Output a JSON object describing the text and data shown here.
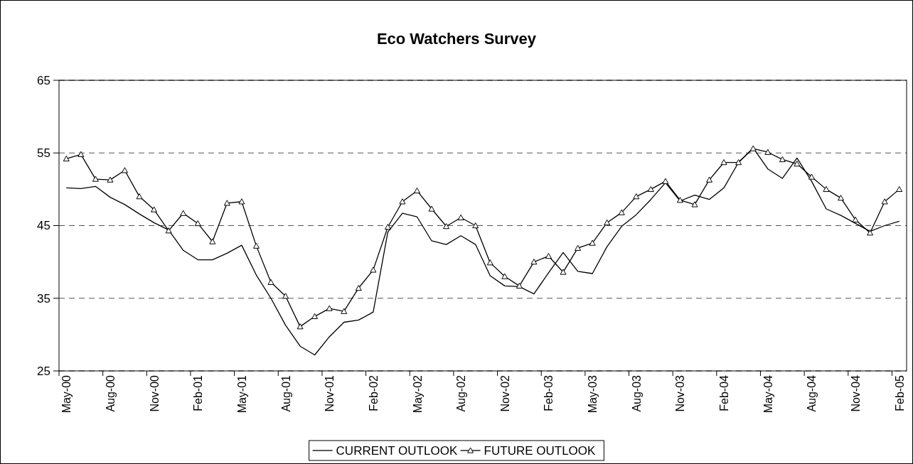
{
  "chart_data": {
    "type": "line",
    "title": "Eco Watchers Survey",
    "categories": [
      "May-00",
      null,
      null,
      "Aug-00",
      null,
      null,
      "Nov-00",
      null,
      null,
      "Feb-01",
      null,
      null,
      "May-01",
      null,
      null,
      "Aug-01",
      null,
      null,
      "Nov-01",
      null,
      null,
      "Feb-02",
      null,
      null,
      "May-02",
      null,
      null,
      "Aug-02",
      null,
      null,
      "Nov-02",
      null,
      null,
      "Feb-03",
      null,
      null,
      "May-03",
      null,
      null,
      "Aug-03",
      null,
      null,
      "Nov-03",
      null,
      null,
      "Feb-04",
      null,
      null,
      "May-04",
      null,
      null,
      "Aug-04",
      null,
      null,
      "Nov-04",
      null,
      null,
      "Feb-05"
    ],
    "series": [
      {
        "name": "CURRENT OUTLOOK",
        "color": "#000000",
        "marker": "none",
        "values": [
          50.2,
          50.1,
          50.4,
          48.9,
          47.9,
          46.6,
          45.4,
          44.4,
          41.6,
          40.3,
          40.3,
          41.2,
          42.3,
          38.2,
          35.0,
          31.3,
          28.4,
          27.2,
          29.7,
          31.7,
          32.0,
          33.1,
          44.1,
          46.7,
          46.2,
          42.9,
          42.4,
          43.6,
          42.4,
          38.1,
          36.7,
          36.6,
          35.6,
          38.5,
          41.3,
          38.7,
          38.4,
          42.1,
          44.9,
          46.5,
          48.6,
          50.9,
          48.4,
          49.2,
          48.6,
          50.2,
          53.7,
          55.7,
          52.8,
          51.5,
          54.3,
          51.1,
          47.3,
          46.4,
          45.3,
          44.2,
          45.0,
          45.6
        ]
      },
      {
        "name": "FUTURE OUTLOOK",
        "color": "#000000",
        "marker": "triangle",
        "values": [
          54.2,
          54.8,
          51.4,
          51.3,
          52.6,
          49.0,
          47.2,
          44.3,
          46.7,
          45.3,
          42.8,
          48.1,
          48.3,
          42.2,
          37.2,
          35.3,
          31.1,
          32.5,
          33.6,
          33.2,
          36.4,
          38.9,
          44.8,
          48.3,
          49.8,
          47.3,
          44.9,
          46.1,
          45.0,
          39.9,
          38.0,
          36.7,
          40.0,
          40.8,
          38.6,
          41.9,
          42.6,
          45.4,
          46.8,
          49.0,
          50.0,
          51.1,
          48.5,
          47.9,
          51.3,
          53.7,
          53.7,
          55.6,
          55.1,
          54.1,
          53.5,
          51.7,
          50.0,
          48.8,
          45.8,
          44.0,
          48.3,
          50.0
        ]
      }
    ],
    "ylim": [
      25,
      65
    ],
    "yticks": [
      25,
      35,
      45,
      55,
      65
    ],
    "grid": "y",
    "legend": "bottom",
    "line_style": "solid"
  }
}
